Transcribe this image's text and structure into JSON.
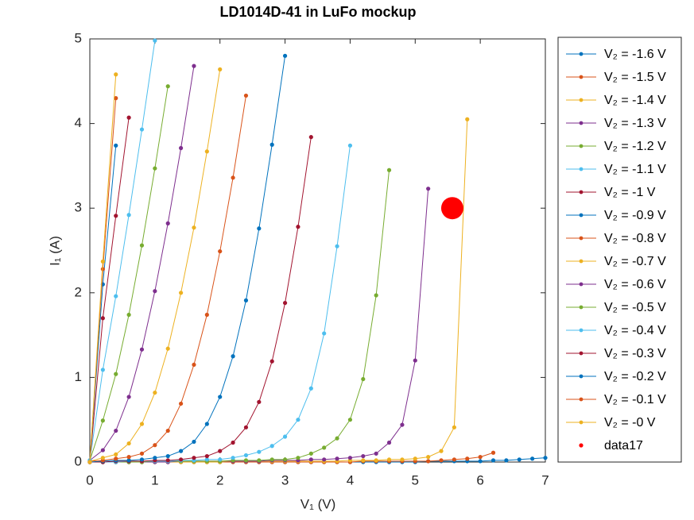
{
  "chart_data": {
    "type": "line",
    "title": "LD1014D-41 in LuFo mockup",
    "x_label": "V₁ (V)",
    "y_label": "I₁ (A)",
    "xlim": [
      0,
      7
    ],
    "xticks": [
      0,
      1,
      2,
      3,
      4,
      5,
      6,
      7
    ],
    "ylim": [
      0,
      5
    ],
    "yticks": [
      0,
      1,
      2,
      3,
      4,
      5
    ],
    "legend": "northeastoutside",
    "x": [
      0,
      0.2,
      0.4,
      0.6,
      0.8,
      1,
      1.2,
      1.4,
      1.6,
      1.8,
      2,
      2.2,
      2.4,
      2.6,
      2.8,
      3,
      3.2,
      3.4,
      3.6,
      3.8,
      4,
      4.2,
      4.4,
      4.6,
      4.8,
      5,
      5.2,
      5.4,
      5.6,
      5.8,
      6,
      6.2,
      6.4,
      6.6,
      6.8,
      7
    ],
    "series": [
      {
        "name": "V₂ = -1.6 V",
        "color": "#0072bd",
        "values": [
          0,
          0,
          0,
          0,
          0,
          0,
          0,
          0,
          0,
          0,
          0,
          0,
          0,
          0,
          0,
          0,
          0,
          0,
          0,
          0,
          0,
          0,
          0,
          0,
          0,
          0,
          0.01,
          0.01,
          0.01,
          0.01,
          0.01,
          0.02,
          0.02,
          0.03,
          0.04,
          0.05
        ]
      },
      {
        "name": "V₂ = -1.5 V",
        "color": "#d95319",
        "values": [
          0,
          0,
          0,
          0,
          0,
          0,
          0,
          0,
          0,
          0,
          0,
          0,
          0,
          0,
          0,
          0,
          0,
          0,
          0,
          0,
          0,
          0.01,
          0.01,
          0.01,
          0.01,
          0.01,
          0.01,
          0.02,
          0.03,
          0.04,
          0.06,
          0.11,
          null,
          null,
          null,
          null
        ]
      },
      {
        "name": "V₂ = -1.4 V",
        "color": "#edb120",
        "values": [
          0,
          0,
          0,
          0,
          0,
          0,
          0,
          0,
          0,
          0,
          0,
          0.01,
          0.01,
          0.01,
          0.01,
          0.01,
          0.01,
          0.01,
          0.01,
          0.01,
          0.02,
          0.02,
          0.02,
          0.03,
          0.03,
          0.04,
          0.06,
          0.13,
          0.41,
          4.05,
          null,
          null,
          null,
          null,
          null,
          null
        ]
      },
      {
        "name": "V₂ = -1.3 V",
        "color": "#7e2f8e",
        "values": [
          0,
          0,
          0,
          0,
          0,
          0,
          0,
          0.01,
          0.01,
          0.01,
          0.01,
          0.01,
          0.01,
          0.01,
          0.02,
          0.02,
          0.02,
          0.03,
          0.03,
          0.04,
          0.05,
          0.07,
          0.1,
          0.23,
          0.44,
          1.2,
          3.23,
          null,
          null,
          null,
          null,
          null,
          null,
          null,
          null,
          null
        ]
      },
      {
        "name": "V₂ = -1.2 V",
        "color": "#77ac30",
        "values": [
          0,
          0,
          0,
          0,
          0,
          0.01,
          0.01,
          0.01,
          0.01,
          0.01,
          0.01,
          0.02,
          0.02,
          0.02,
          0.03,
          0.03,
          0.05,
          0.1,
          0.17,
          0.28,
          0.5,
          0.98,
          1.97,
          3.45,
          null,
          null,
          null,
          null,
          null,
          null,
          null,
          null,
          null,
          null,
          null,
          null
        ]
      },
      {
        "name": "V₂ = -1.1 V",
        "color": "#4dbeee",
        "values": [
          0,
          0,
          0,
          0.01,
          0.01,
          0.01,
          0.01,
          0.02,
          0.02,
          0.03,
          0.03,
          0.05,
          0.08,
          0.12,
          0.19,
          0.3,
          0.5,
          0.87,
          1.52,
          2.55,
          3.74,
          null,
          null,
          null,
          null,
          null,
          null,
          null,
          null,
          null,
          null,
          null,
          null,
          null,
          null,
          null
        ]
      },
      {
        "name": "V₂ = -1 V",
        "color": "#a2142f",
        "values": [
          0,
          0,
          0.01,
          0.01,
          0.01,
          0.02,
          0.02,
          0.03,
          0.05,
          0.07,
          0.13,
          0.23,
          0.41,
          0.71,
          1.19,
          1.88,
          2.78,
          3.84,
          null,
          null,
          null,
          null,
          null,
          null,
          null,
          null,
          null,
          null,
          null,
          null,
          null,
          null,
          null,
          null,
          null,
          null
        ]
      },
      {
        "name": "V₂ = -0.9 V",
        "color": "#0072bd",
        "values": [
          0,
          0.01,
          0.02,
          0.02,
          0.03,
          0.05,
          0.07,
          0.13,
          0.24,
          0.45,
          0.77,
          1.25,
          1.91,
          2.76,
          3.75,
          4.8,
          null,
          null,
          null,
          null,
          null,
          null,
          null,
          null,
          null,
          null,
          null,
          null,
          null,
          null,
          null,
          null,
          null,
          null,
          null,
          null
        ]
      },
      {
        "name": "V₂ = -0.8 V",
        "color": "#d95319",
        "values": [
          0.01,
          0.02,
          0.04,
          0.06,
          0.1,
          0.2,
          0.37,
          0.69,
          1.15,
          1.74,
          2.49,
          3.36,
          4.33,
          null,
          null,
          null,
          null,
          null,
          null,
          null,
          null,
          null,
          null,
          null,
          null,
          null,
          null,
          null,
          null,
          null,
          null,
          null,
          null,
          null,
          null,
          null
        ]
      },
      {
        "name": "V₂ = -0.7 V",
        "color": "#edb120",
        "values": [
          0.01,
          0.05,
          0.09,
          0.22,
          0.45,
          0.82,
          1.34,
          2,
          2.77,
          3.67,
          4.64,
          null,
          null,
          null,
          null,
          null,
          null,
          null,
          null,
          null,
          null,
          null,
          null,
          null,
          null,
          null,
          null,
          null,
          null,
          null,
          null,
          null,
          null,
          null,
          null,
          null
        ]
      },
      {
        "name": "V₂ = -0.6 V",
        "color": "#7e2f8e",
        "values": [
          0.02,
          0.14,
          0.37,
          0.77,
          1.33,
          2.02,
          2.82,
          3.71,
          4.68,
          null,
          null,
          null,
          null,
          null,
          null,
          null,
          null,
          null,
          null,
          null,
          null,
          null,
          null,
          null,
          null,
          null,
          null,
          null,
          null,
          null,
          null,
          null,
          null,
          null,
          null,
          null
        ]
      },
      {
        "name": "V₂ = -0.5 V",
        "color": "#77ac30",
        "values": [
          0.02,
          0.49,
          1.04,
          1.74,
          2.56,
          3.47,
          4.44,
          null,
          null,
          null,
          null,
          null,
          null,
          null,
          null,
          null,
          null,
          null,
          null,
          null,
          null,
          null,
          null,
          null,
          null,
          null,
          null,
          null,
          null,
          null,
          null,
          null,
          null,
          null,
          null,
          null
        ]
      },
      {
        "name": "V₂ = -0.4 V",
        "color": "#4dbeee",
        "values": [
          0.02,
          1.09,
          1.96,
          2.92,
          3.93,
          4.98,
          null,
          null,
          null,
          null,
          null,
          null,
          null,
          null,
          null,
          null,
          null,
          null,
          null,
          null,
          null,
          null,
          null,
          null,
          null,
          null,
          null,
          null,
          null,
          null,
          null,
          null,
          null,
          null,
          null,
          null
        ]
      },
      {
        "name": "V₂ = -0.3 V",
        "color": "#a2142f",
        "values": [
          0,
          1.7,
          2.91,
          4.07,
          null,
          null,
          null,
          null,
          null,
          null,
          null,
          null,
          null,
          null,
          null,
          null,
          null,
          null,
          null,
          null,
          null,
          null,
          null,
          null,
          null,
          null,
          null,
          null,
          null,
          null,
          null,
          null,
          null,
          null,
          null,
          null
        ]
      },
      {
        "name": "V₂ = -0.2 V",
        "color": "#0072bd",
        "values": [
          0,
          2.1,
          3.74,
          null,
          null,
          null,
          null,
          null,
          null,
          null,
          null,
          null,
          null,
          null,
          null,
          null,
          null,
          null,
          null,
          null,
          null,
          null,
          null,
          null,
          null,
          null,
          null,
          null,
          null,
          null,
          null,
          null,
          null,
          null,
          null,
          null
        ]
      },
      {
        "name": "V₂ = -0.1 V",
        "color": "#d95319",
        "values": [
          0,
          2.28,
          4.3,
          null,
          null,
          null,
          null,
          null,
          null,
          null,
          null,
          null,
          null,
          null,
          null,
          null,
          null,
          null,
          null,
          null,
          null,
          null,
          null,
          null,
          null,
          null,
          null,
          null,
          null,
          null,
          null,
          null,
          null,
          null,
          null,
          null
        ]
      },
      {
        "name": "V₂ = -0 V",
        "color": "#edb120",
        "values": [
          0,
          2.37,
          4.58,
          null,
          null,
          null,
          null,
          null,
          null,
          null,
          null,
          null,
          null,
          null,
          null,
          null,
          null,
          null,
          null,
          null,
          null,
          null,
          null,
          null,
          null,
          null,
          null,
          null,
          null,
          null,
          null,
          null,
          null,
          null,
          null,
          null
        ]
      },
      {
        "name": "data17",
        "color": "#ff0000",
        "mode": "markers",
        "x": [
          5.57
        ],
        "values": [
          3
        ]
      }
    ]
  }
}
